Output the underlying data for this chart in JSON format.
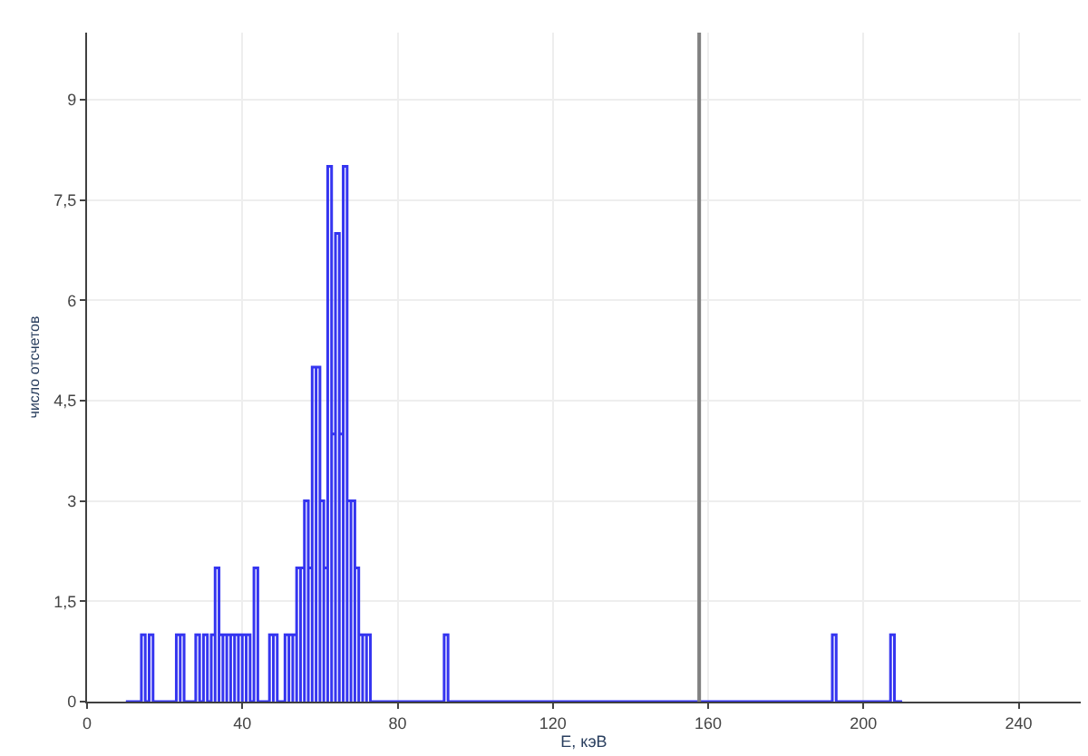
{
  "chart_data": {
    "type": "histogram",
    "xlabel": "E, кэВ",
    "ylabel": "число отсчетов",
    "color": "#3535f0",
    "bins": [
      10,
      14,
      15,
      16,
      17,
      23,
      24,
      25,
      28,
      29,
      30,
      31,
      32,
      33,
      34,
      35,
      36,
      37,
      38,
      39,
      40,
      41,
      42,
      43,
      44,
      47,
      48,
      49,
      51,
      52,
      53,
      54,
      55,
      56,
      57,
      58,
      59,
      60,
      61,
      62,
      63,
      64,
      65,
      66,
      67,
      68,
      69,
      70,
      71,
      72,
      73,
      92,
      93,
      192,
      193,
      207,
      208,
      210
    ],
    "values": [
      0,
      1,
      0,
      1,
      0,
      1,
      1,
      0,
      1,
      0,
      1,
      0,
      1,
      2,
      1,
      1,
      1,
      1,
      1,
      1,
      1,
      1,
      0,
      2,
      0,
      1,
      1,
      0,
      1,
      1,
      1,
      2,
      2,
      3,
      2,
      5,
      5,
      3,
      2,
      8,
      4,
      7,
      4,
      8,
      3,
      3,
      2,
      1,
      1,
      1,
      0,
      1,
      0,
      1,
      0,
      1,
      0
    ],
    "xlim": [
      0,
      256
    ],
    "ylim": [
      0,
      10
    ],
    "xticks": [
      0,
      40,
      80,
      120,
      160,
      200,
      240
    ],
    "yticks": [
      0,
      {
        "value": 1.5,
        "label": "1,5"
      },
      3,
      {
        "value": 4.5,
        "label": "4,5"
      },
      6,
      {
        "value": 7.5,
        "label": "7,5"
      },
      9
    ],
    "ref_lines": [
      {
        "axis": "x",
        "value": 157.7,
        "color": "#808080"
      }
    ],
    "grid": true
  }
}
